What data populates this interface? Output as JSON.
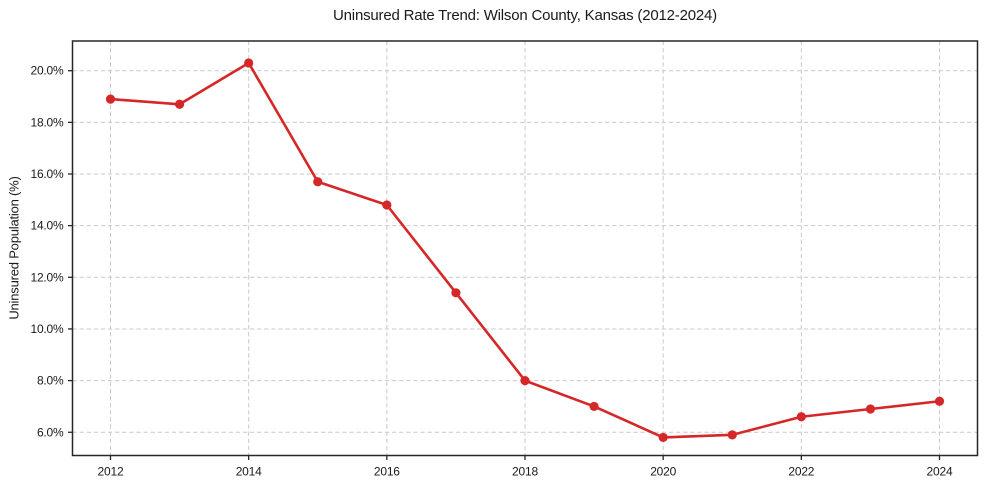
{
  "chart_data": {
    "type": "line",
    "title": "Uninsured Rate Trend: Wilson County, Kansas (2012-2024)",
    "xlabel": "",
    "ylabel": "Uninsured Population (%)",
    "x": [
      2012,
      2013,
      2014,
      2015,
      2016,
      2017,
      2018,
      2019,
      2020,
      2021,
      2022,
      2023,
      2024
    ],
    "values": [
      18.9,
      18.7,
      20.3,
      15.7,
      14.8,
      11.4,
      8.0,
      7.0,
      5.8,
      5.9,
      6.6,
      6.9,
      7.2
    ],
    "xlim": [
      2011.45,
      2024.55
    ],
    "ylim": [
      5.1,
      21.15
    ],
    "xticks": {
      "values": [
        2012,
        2014,
        2016,
        2018,
        2020,
        2022,
        2024
      ],
      "labels": [
        "2012",
        "2014",
        "2016",
        "2018",
        "2020",
        "2022",
        "2024"
      ]
    },
    "yticks": {
      "values": [
        6,
        8,
        10,
        12,
        14,
        16,
        18,
        20
      ],
      "labels": [
        "6.0%",
        "8.0%",
        "10.0%",
        "12.0%",
        "14.0%",
        "16.0%",
        "18.0%",
        "20.0%"
      ]
    },
    "grid": true,
    "grid_style": "dashed",
    "legend": false,
    "colors": {
      "line": "#d62728",
      "marker": "#d62728",
      "grid": "#c9c9c9",
      "spine": "#262626",
      "text": "#1a1a1a",
      "background": "#ffffff"
    }
  }
}
